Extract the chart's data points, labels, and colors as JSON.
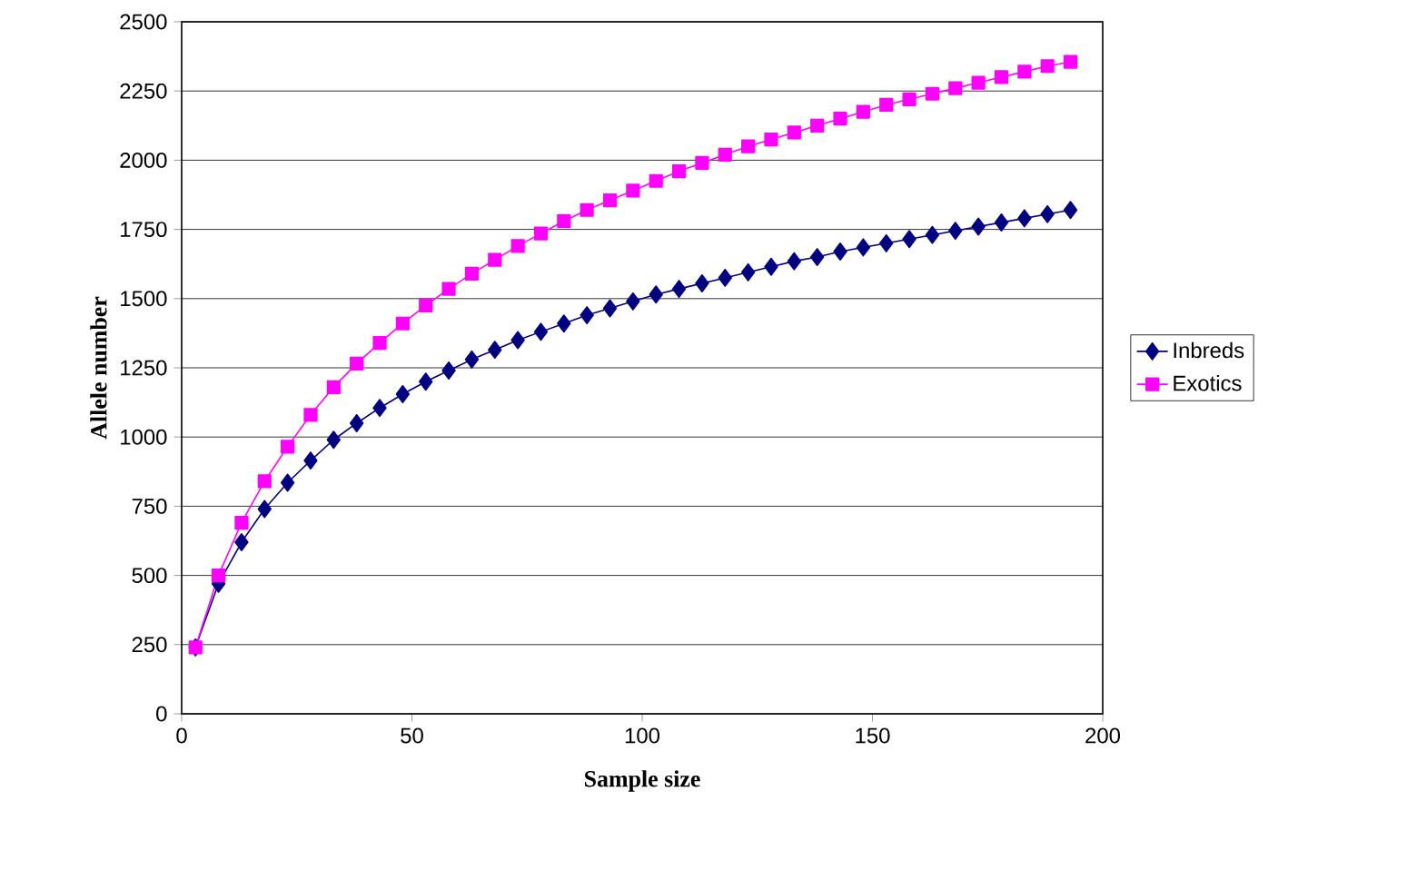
{
  "chart_data": {
    "type": "line",
    "xlabel": "Sample size",
    "ylabel": "Allele number",
    "x": [
      3,
      8,
      13,
      18,
      23,
      28,
      33,
      38,
      43,
      48,
      53,
      58,
      63,
      68,
      73,
      78,
      83,
      88,
      93,
      98,
      103,
      108,
      113,
      118,
      123,
      128,
      133,
      138,
      143,
      148,
      153,
      158,
      163,
      168,
      173,
      178,
      183,
      188,
      193
    ],
    "series": [
      {
        "name": "Inbreds",
        "color": "#000080",
        "marker": "diamond",
        "values": [
          240,
          470,
          620,
          740,
          835,
          915,
          990,
          1050,
          1105,
          1155,
          1200,
          1240,
          1280,
          1315,
          1350,
          1380,
          1410,
          1440,
          1465,
          1490,
          1515,
          1535,
          1555,
          1575,
          1595,
          1615,
          1635,
          1650,
          1670,
          1685,
          1700,
          1715,
          1730,
          1745,
          1760,
          1775,
          1790,
          1805,
          1820
        ]
      },
      {
        "name": "Exotics",
        "color": "#ff00ff",
        "marker": "square",
        "values": [
          240,
          500,
          690,
          840,
          965,
          1080,
          1180,
          1265,
          1340,
          1410,
          1475,
          1535,
          1590,
          1640,
          1690,
          1735,
          1780,
          1820,
          1855,
          1890,
          1925,
          1960,
          1990,
          2020,
          2050,
          2075,
          2100,
          2125,
          2150,
          2175,
          2200,
          2220,
          2240,
          2260,
          2280,
          2300,
          2320,
          2340,
          2355
        ]
      }
    ],
    "xlim": [
      0,
      200
    ],
    "xticks": [
      0,
      50,
      100,
      150,
      200
    ],
    "ylim": [
      0,
      2500
    ],
    "yticks": [
      0,
      250,
      500,
      750,
      1000,
      1250,
      1500,
      1750,
      2000,
      2250,
      2500
    ],
    "grid": "y",
    "legend": "right",
    "line_style": "solid"
  }
}
